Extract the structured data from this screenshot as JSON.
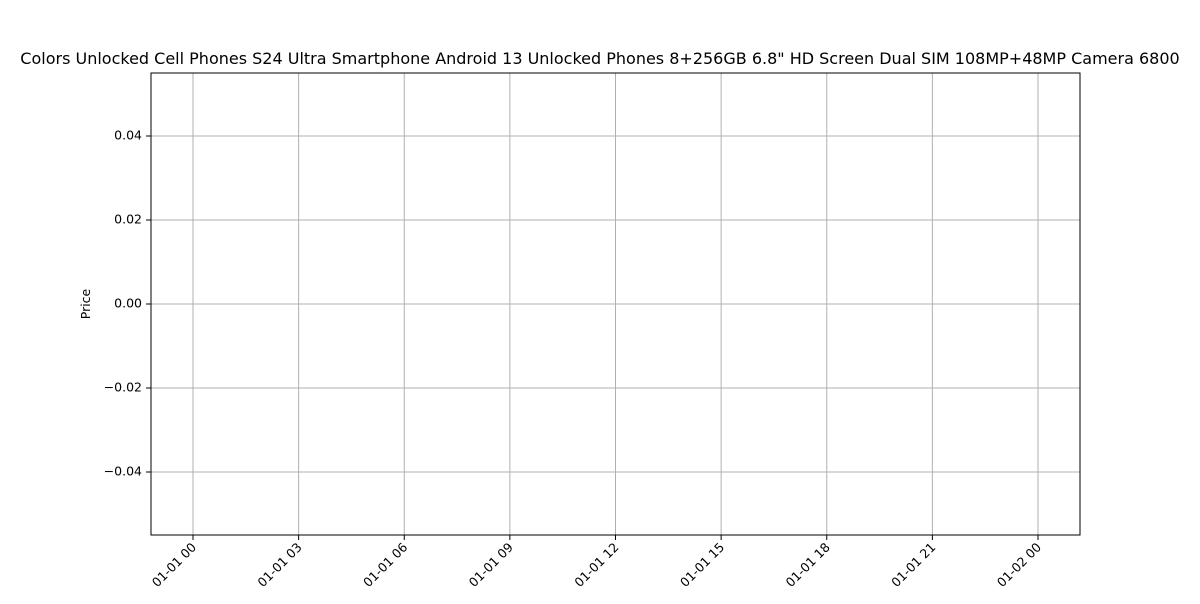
{
  "chart_data": {
    "type": "line",
    "title": "Colors Unlocked Cell Phones S24 Ultra Smartphone Android 13 Unlocked Phones 8+256GB 6.8\" HD Screen Dual SIM 108MP+48MP Camera 6800",
    "xlabel": "",
    "ylabel": "Price",
    "x_tick_labels": [
      "01-01 00",
      "01-01 03",
      "01-01 06",
      "01-01 09",
      "01-01 12",
      "01-01 15",
      "01-01 18",
      "01-01 21",
      "01-02 00"
    ],
    "x_range": [
      "01-01 00",
      "01-02 00"
    ],
    "y_tick_values": [
      0.04,
      0.02,
      0.0,
      -0.02,
      -0.04
    ],
    "y_tick_labels": [
      "0.04",
      "0.02",
      "0.00",
      "−0.02",
      "−0.04"
    ],
    "ylim": [
      -0.055,
      0.055
    ],
    "series": [
      {
        "x": [],
        "values": []
      }
    ],
    "grid": true,
    "colors": {
      "grid": "#b0b0b0",
      "axis": "#000000"
    }
  }
}
